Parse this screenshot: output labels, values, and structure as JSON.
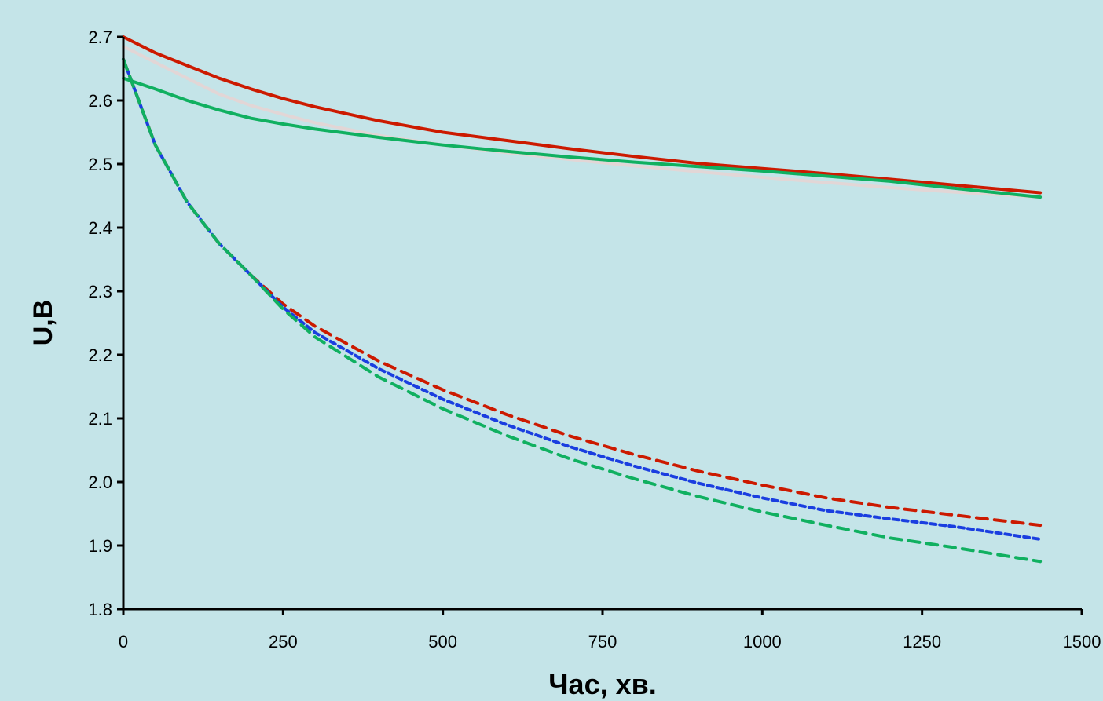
{
  "chart_data": {
    "type": "line",
    "title": "",
    "xlabel": "Час, хв.",
    "ylabel": "U,B",
    "xlim": [
      0,
      1500
    ],
    "ylim": [
      1.8,
      2.7
    ],
    "x_ticks": [
      "0",
      "250",
      "500",
      "750",
      "1000",
      "1250",
      "1500"
    ],
    "y_ticks": [
      "1.8",
      "1.9",
      "2.0",
      "2.1",
      "2.2",
      "2.3",
      "2.4",
      "2.5",
      "2.6",
      "2.7"
    ],
    "grid": false,
    "legend": "none",
    "x": [
      0,
      50,
      100,
      150,
      200,
      250,
      300,
      400,
      500,
      600,
      700,
      800,
      900,
      1000,
      1100,
      1200,
      1300,
      1435
    ],
    "series": [
      {
        "color": "#cc1a00",
        "style": "solid",
        "values": [
          2.7,
          2.675,
          2.655,
          2.635,
          2.618,
          2.603,
          2.59,
          2.568,
          2.55,
          2.537,
          2.524,
          2.512,
          2.501,
          2.493,
          2.485,
          2.476,
          2.467,
          2.455
        ]
      },
      {
        "color": "#e2d6d6",
        "style": "solid",
        "values": [
          2.685,
          2.66,
          2.635,
          2.61,
          2.592,
          2.578,
          2.565,
          2.545,
          2.53,
          2.518,
          2.507,
          2.497,
          2.488,
          2.479,
          2.471,
          2.463,
          2.456,
          2.448
        ]
      },
      {
        "color": "#10b060",
        "style": "solid",
        "values": [
          2.635,
          2.618,
          2.6,
          2.585,
          2.572,
          2.563,
          2.555,
          2.542,
          2.53,
          2.52,
          2.511,
          2.503,
          2.496,
          2.489,
          2.481,
          2.473,
          2.462,
          2.448
        ]
      },
      {
        "color": "#cc1a00",
        "style": "dashed",
        "values": [
          2.665,
          2.53,
          2.44,
          2.375,
          2.325,
          2.28,
          2.245,
          2.19,
          2.145,
          2.106,
          2.072,
          2.043,
          2.017,
          1.995,
          1.975,
          1.96,
          1.948,
          1.932
        ]
      },
      {
        "color": "#1a3ee0",
        "style": "dotted",
        "values": [
          2.665,
          2.53,
          2.44,
          2.375,
          2.325,
          2.275,
          2.235,
          2.178,
          2.13,
          2.09,
          2.055,
          2.025,
          1.998,
          1.975,
          1.955,
          1.942,
          1.93,
          1.91
        ]
      },
      {
        "color": "#10b060",
        "style": "dashed",
        "values": [
          2.665,
          2.53,
          2.44,
          2.375,
          2.325,
          2.272,
          2.228,
          2.165,
          2.115,
          2.073,
          2.036,
          2.005,
          1.977,
          1.953,
          1.932,
          1.912,
          1.897,
          1.875
        ]
      }
    ]
  }
}
